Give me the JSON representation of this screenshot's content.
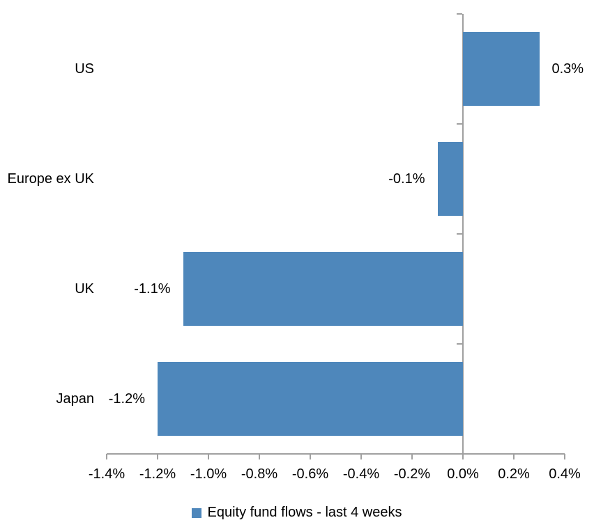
{
  "chart_data": {
    "type": "bar",
    "orientation": "horizontal",
    "title": "",
    "xlabel": "",
    "ylabel": "",
    "categories": [
      "US",
      "Europe ex UK",
      "UK",
      "Japan"
    ],
    "values": [
      0.3,
      -0.1,
      -1.1,
      -1.2
    ],
    "value_labels": [
      "0.3%",
      "-0.1%",
      "-1.1%",
      "-1.2%"
    ],
    "series_name": "Equity fund flows - last 4 weeks",
    "unit": "%",
    "xlim": [
      -1.4,
      0.4
    ],
    "x_tick_values": [
      -1.4,
      -1.2,
      -1.0,
      -0.8,
      -0.6,
      -0.4,
      -0.2,
      0.0,
      0.2,
      0.4
    ],
    "x_tick_labels": [
      "-1.4%",
      "-1.2%",
      "-1.0%",
      "-0.8%",
      "-0.6%",
      "-0.4%",
      "-0.2%",
      "0.0%",
      "0.2%",
      "0.4%"
    ],
    "grid": false,
    "legend_position": "bottom",
    "colors": {
      "bar": "#4E87BB",
      "axis": "#A0A0A0",
      "text": "#000000",
      "background": "#FFFFFF"
    }
  }
}
